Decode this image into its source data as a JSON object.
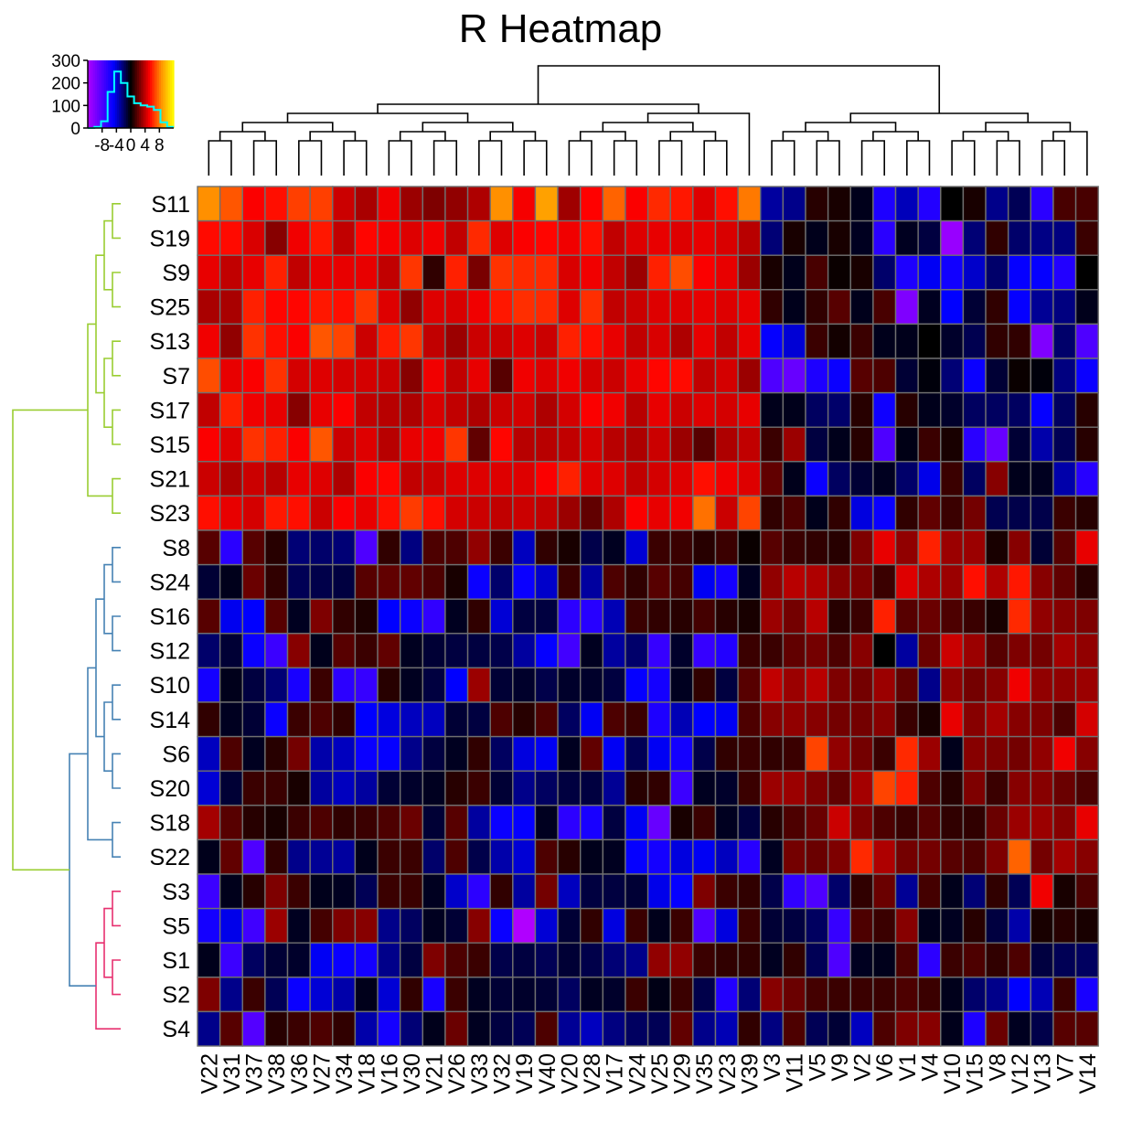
{
  "chart_data": {
    "type": "heatmap",
    "title": "R Heatmap",
    "columns": [
      "V22",
      "V31",
      "V37",
      "V38",
      "V36",
      "V27",
      "V34",
      "V18",
      "V16",
      "V30",
      "V21",
      "V26",
      "V33",
      "V32",
      "V19",
      "V40",
      "V20",
      "V28",
      "V17",
      "V24",
      "V25",
      "V29",
      "V35",
      "V23",
      "V39",
      "V3",
      "V11",
      "V5",
      "V9",
      "V2",
      "V6",
      "V1",
      "V4",
      "V10",
      "V15",
      "V8",
      "V12",
      "V13",
      "V7",
      "V14"
    ],
    "rows": [
      "S11",
      "S19",
      "S9",
      "S25",
      "S13",
      "S7",
      "S17",
      "S15",
      "S21",
      "S23",
      "S8",
      "S24",
      "S16",
      "S12",
      "S10",
      "S14",
      "S6",
      "S20",
      "S18",
      "S22",
      "S3",
      "S5",
      "S1",
      "S2",
      "S4"
    ],
    "row_groups": [
      {
        "color": "#9acd32",
        "rows": [
          "S11",
          "S19",
          "S9",
          "S25",
          "S13",
          "S7",
          "S17",
          "S15",
          "S21",
          "S23"
        ]
      },
      {
        "color": "#4682b4",
        "rows": [
          "S8",
          "S24",
          "S16",
          "S12",
          "S10",
          "S14",
          "S6",
          "S20",
          "S18",
          "S22"
        ]
      },
      {
        "color": "#e7306f",
        "rows": [
          "S3",
          "S5",
          "S1",
          "S2",
          "S4"
        ]
      }
    ],
    "column_groups": [
      {
        "columns": [
          "V22",
          "V31",
          "V37",
          "V38",
          "V36",
          "V27",
          "V34",
          "V18",
          "V16",
          "V30",
          "V21",
          "V26",
          "V33",
          "V32",
          "V19",
          "V40",
          "V20",
          "V28",
          "V17",
          "V24",
          "V25",
          "V29",
          "V35",
          "V23",
          "V39"
        ]
      },
      {
        "columns": [
          "V3",
          "V11",
          "V5",
          "V9",
          "V2",
          "V6",
          "V1",
          "V4",
          "V10",
          "V15",
          "V8",
          "V12",
          "V13",
          "V7",
          "V14"
        ]
      }
    ],
    "values": [
      [
        8.5,
        7.2,
        5.2,
        5.6,
        6.7,
        6.7,
        4.2,
        3.5,
        5.0,
        3.2,
        2.6,
        3.0,
        3.6,
        8.5,
        5.1,
        9.0,
        3.3,
        5.3,
        7.5,
        5.2,
        6.2,
        5.8,
        4.6,
        5.6,
        8.0,
        -3.0,
        -2.6,
        0.8,
        0.5,
        -0.5,
        -6.0,
        -3.5,
        -6.2,
        0.0,
        0.5,
        -2.6,
        -1.6,
        -6.5,
        1.5,
        1.5
      ],
      [
        5.5,
        5.5,
        4.5,
        2.8,
        5.0,
        5.8,
        4.0,
        5.4,
        5.1,
        4.6,
        5.0,
        4.0,
        6.2,
        4.6,
        5.2,
        5.4,
        5.0,
        5.6,
        4.0,
        4.6,
        4.8,
        4.6,
        4.8,
        4.5,
        3.8,
        -2.2,
        0.5,
        -0.5,
        0.5,
        -0.6,
        -6.5,
        -0.6,
        -1.2,
        -11.0,
        -2.2,
        1.0,
        -2.0,
        -2.5,
        -2.4,
        1.2
      ],
      [
        4.8,
        4.0,
        4.8,
        6.0,
        4.0,
        4.8,
        4.8,
        4.8,
        4.0,
        6.5,
        1.0,
        6.0,
        2.5,
        6.4,
        6.2,
        6.2,
        4.5,
        5.0,
        4.0,
        3.2,
        6.0,
        7.0,
        5.2,
        4.8,
        3.2,
        0.5,
        -0.5,
        1.5,
        0.2,
        0.5,
        -2.0,
        -6.0,
        -4.6,
        -5.5,
        -3.8,
        -2.0,
        -5.0,
        -5.0,
        -6.2,
        0.0
      ],
      [
        3.5,
        3.5,
        6.0,
        5.4,
        5.4,
        5.8,
        5.6,
        6.5,
        4.6,
        3.0,
        4.6,
        4.5,
        5.0,
        5.8,
        6.3,
        6.2,
        4.6,
        6.3,
        4.0,
        4.2,
        4.6,
        4.6,
        4.8,
        4.6,
        4.8,
        1.0,
        -0.5,
        1.0,
        1.8,
        -0.5,
        1.5,
        -10.0,
        -0.6,
        -4.8,
        -1.0,
        1.0,
        -5.0,
        -2.8,
        -2.4,
        -0.5
      ],
      [
        5.0,
        3.0,
        6.4,
        5.6,
        5.2,
        7.2,
        6.8,
        4.2,
        5.9,
        6.5,
        4.0,
        3.2,
        4.2,
        4.2,
        4.6,
        4.2,
        6.0,
        5.6,
        4.8,
        4.0,
        4.5,
        3.6,
        4.8,
        4.0,
        4.8,
        -5.0,
        -4.0,
        1.2,
        0.4,
        1.2,
        -0.5,
        -0.5,
        0.0,
        -0.8,
        -1.5,
        1.0,
        1.0,
        -10.0,
        -2.0,
        -8.0
      ],
      [
        7.0,
        4.8,
        5.2,
        6.4,
        4.4,
        4.6,
        4.4,
        4.4,
        4.2,
        2.8,
        5.0,
        4.0,
        4.8,
        1.8,
        5.0,
        4.6,
        5.0,
        4.4,
        4.2,
        4.8,
        5.4,
        5.5,
        4.0,
        4.4,
        3.2,
        -8.0,
        -9.0,
        -6.0,
        -5.2,
        1.8,
        1.6,
        -1.0,
        -0.2,
        -2.2,
        -5.2,
        -1.0,
        0.2,
        -0.2,
        -2.4,
        -5.2
      ],
      [
        4.0,
        6.0,
        5.0,
        4.8,
        2.8,
        4.8,
        5.2,
        4.0,
        3.8,
        3.6,
        4.5,
        4.0,
        3.6,
        4.2,
        4.4,
        3.6,
        4.4,
        5.2,
        5.0,
        3.8,
        4.8,
        4.2,
        4.6,
        4.4,
        4.8,
        -0.5,
        -0.5,
        -1.8,
        -2.0,
        0.8,
        -5.4,
        0.8,
        -0.5,
        -0.8,
        -1.8,
        -1.8,
        -1.8,
        -5.0,
        -1.8,
        0.8
      ],
      [
        5.2,
        4.6,
        6.4,
        6.0,
        5.2,
        7.2,
        4.2,
        4.6,
        3.8,
        4.8,
        5.0,
        6.5,
        2.0,
        5.4,
        3.8,
        3.8,
        4.0,
        4.4,
        3.8,
        3.6,
        4.2,
        3.2,
        1.8,
        3.6,
        4.0,
        1.2,
        3.2,
        -1.2,
        -0.5,
        0.8,
        -8.0,
        -0.4,
        1.2,
        0.5,
        -6.5,
        -9.0,
        -1.0,
        -3.2,
        -1.6,
        0.8
      ],
      [
        4.2,
        3.6,
        4.2,
        3.8,
        4.8,
        4.6,
        3.6,
        5.2,
        5.4,
        4.0,
        4.2,
        4.6,
        4.6,
        4.6,
        4.6,
        5.2,
        6.0,
        4.6,
        4.6,
        4.0,
        4.4,
        4.6,
        5.6,
        5.0,
        4.6,
        2.0,
        -0.5,
        -5.2,
        -1.8,
        -1.0,
        -0.6,
        -2.0,
        -4.4,
        1.2,
        -1.8,
        2.8,
        -0.5,
        -0.6,
        -3.2,
        -6.4
      ],
      [
        5.6,
        4.8,
        4.4,
        5.8,
        5.6,
        4.2,
        5.2,
        4.8,
        5.6,
        6.6,
        5.6,
        4.4,
        4.2,
        4.0,
        4.2,
        4.0,
        3.2,
        2.0,
        3.6,
        5.2,
        4.8,
        5.0,
        7.8,
        4.2,
        6.8,
        1.0,
        1.6,
        -0.5,
        1.0,
        -4.2,
        -5.2,
        1.0,
        2.0,
        1.2,
        2.4,
        -1.5,
        -1.4,
        -1.4,
        1.2,
        0.8
      ],
      [
        1.8,
        -6.5,
        1.8,
        0.8,
        -2.2,
        -2.0,
        -2.2,
        -8.0,
        1.0,
        -2.4,
        1.6,
        1.6,
        3.0,
        1.2,
        -3.6,
        1.0,
        0.5,
        -1.4,
        -0.6,
        -4.0,
        1.2,
        1.2,
        0.8,
        1.2,
        0.2,
        1.8,
        1.2,
        1.0,
        0.8,
        2.6,
        4.8,
        3.0,
        6.0,
        3.2,
        3.2,
        0.5,
        2.8,
        -1.0,
        1.8,
        4.8
      ],
      [
        -1.0,
        -0.5,
        2.2,
        1.0,
        -1.6,
        -1.4,
        -1.2,
        1.8,
        2.0,
        2.0,
        1.6,
        0.5,
        -5.2,
        -2.0,
        -5.2,
        -3.8,
        1.2,
        -3.0,
        1.6,
        1.0,
        1.8,
        1.4,
        -4.6,
        -5.6,
        -0.6,
        3.0,
        3.8,
        3.6,
        2.8,
        2.6,
        1.2,
        4.6,
        3.6,
        3.2,
        5.6,
        3.6,
        5.8,
        2.8,
        2.0,
        0.8
      ],
      [
        1.8,
        -4.5,
        -4.8,
        1.8,
        -0.6,
        2.6,
        1.0,
        0.6,
        -4.8,
        -5.2,
        -6.8,
        -0.6,
        1.0,
        -4.0,
        -1.2,
        -1.2,
        -6.6,
        -6.4,
        -3.4,
        1.2,
        1.0,
        0.8,
        1.4,
        0.8,
        0.5,
        3.2,
        2.4,
        3.8,
        0.8,
        1.2,
        6.0,
        1.8,
        2.2,
        1.6,
        1.2,
        0.5,
        6.2,
        3.0,
        2.8,
        2.6
      ],
      [
        -2.0,
        -1.0,
        -5.2,
        -7.2,
        2.8,
        -0.5,
        1.8,
        1.2,
        2.0,
        -0.6,
        -1.0,
        -1.2,
        -1.2,
        -1.4,
        -3.0,
        -5.0,
        -7.5,
        -0.6,
        -3.0,
        -2.0,
        -7.0,
        -0.8,
        -7.0,
        -6.2,
        1.2,
        1.2,
        2.0,
        2.4,
        1.6,
        2.8,
        0.0,
        -3.0,
        2.2,
        4.2,
        3.2,
        1.8,
        2.6,
        2.4,
        3.4,
        3.0
      ],
      [
        -5.6,
        -0.5,
        -1.2,
        -2.2,
        -5.8,
        1.2,
        -6.6,
        -7.0,
        0.8,
        -0.6,
        -1.2,
        -4.8,
        3.2,
        -1.0,
        -0.8,
        -1.4,
        -0.8,
        -0.8,
        -1.2,
        -5.0,
        -5.6,
        -0.6,
        1.0,
        -1.2,
        1.8,
        4.0,
        3.2,
        3.8,
        2.6,
        2.4,
        3.2,
        2.0,
        -2.6,
        3.0,
        2.4,
        2.8,
        5.0,
        3.0,
        3.0,
        3.2
      ],
      [
        1.0,
        -0.6,
        -1.0,
        -5.2,
        1.2,
        1.6,
        1.0,
        -4.8,
        -4.2,
        -3.6,
        -3.6,
        -1.0,
        -1.2,
        1.6,
        0.8,
        1.6,
        -1.8,
        -4.6,
        1.6,
        1.2,
        -6.0,
        -3.4,
        -4.8,
        -4.6,
        1.6,
        2.8,
        3.0,
        2.8,
        2.4,
        2.4,
        2.8,
        1.2,
        0.5,
        4.8,
        2.8,
        3.4,
        2.8,
        2.6,
        1.6,
        4.4
      ],
      [
        -3.6,
        1.6,
        -0.6,
        0.8,
        2.4,
        -3.2,
        -3.6,
        -5.2,
        -5.0,
        -2.6,
        -1.2,
        -0.6,
        1.0,
        -1.8,
        -4.2,
        -4.6,
        -0.6,
        2.0,
        -4.6,
        -1.6,
        -4.6,
        -5.6,
        -1.4,
        1.0,
        1.2,
        1.0,
        1.2,
        6.8,
        3.0,
        2.4,
        1.2,
        6.2,
        3.2,
        -0.5,
        2.8,
        2.6,
        2.4,
        3.0,
        5.0,
        2.8
      ],
      [
        -4.0,
        -1.0,
        1.2,
        1.2,
        0.5,
        -3.0,
        -3.6,
        -3.0,
        -1.0,
        -0.8,
        -0.6,
        0.8,
        1.2,
        -1.0,
        -2.6,
        -1.8,
        -1.2,
        -1.2,
        -2.8,
        0.8,
        1.0,
        -7.2,
        -0.6,
        -0.8,
        1.2,
        3.2,
        3.2,
        2.6,
        2.0,
        3.4,
        6.8,
        6.0,
        1.6,
        0.8,
        2.6,
        1.2,
        2.8,
        2.8,
        2.2,
        1.6
      ],
      [
        3.4,
        1.8,
        0.8,
        0.5,
        1.2,
        1.6,
        1.0,
        1.2,
        1.6,
        2.2,
        -1.0,
        1.8,
        -3.0,
        -5.2,
        -5.0,
        -0.6,
        -6.6,
        -5.8,
        -1.2,
        -4.6,
        -9.0,
        0.5,
        1.2,
        -0.6,
        -1.2,
        0.8,
        1.6,
        2.2,
        4.2,
        2.6,
        1.6,
        1.2,
        1.8,
        1.0,
        1.0,
        2.2,
        3.2,
        3.2,
        2.8,
        4.8
      ],
      [
        -0.5,
        2.0,
        -8.0,
        1.0,
        -2.6,
        -2.8,
        -3.0,
        -0.5,
        1.2,
        1.2,
        -2.0,
        1.6,
        -1.4,
        -3.2,
        -4.0,
        1.6,
        0.8,
        -0.5,
        -0.6,
        -5.0,
        -5.6,
        -4.2,
        -4.6,
        -3.6,
        -6.4,
        -0.6,
        2.4,
        2.2,
        2.6,
        6.2,
        3.6,
        2.4,
        2.4,
        1.8,
        1.6,
        2.6,
        7.5,
        2.4,
        3.4,
        2.8
      ],
      [
        -7.2,
        -0.5,
        0.8,
        2.6,
        1.2,
        -0.5,
        -0.6,
        -1.6,
        1.2,
        1.2,
        -0.6,
        -3.8,
        -6.6,
        1.0,
        -3.0,
        2.4,
        -3.6,
        -1.2,
        -1.2,
        -1.0,
        -4.4,
        -5.0,
        2.6,
        1.2,
        1.0,
        -1.4,
        -6.8,
        -8.0,
        -2.0,
        1.0,
        2.2,
        -2.8,
        1.4,
        -0.5,
        -2.2,
        1.0,
        -1.6,
        5.0,
        0.5,
        1.6
      ],
      [
        -5.6,
        -4.4,
        -7.4,
        3.2,
        -0.6,
        1.4,
        2.6,
        2.8,
        -2.6,
        -1.8,
        -0.6,
        -1.0,
        2.8,
        -5.2,
        -12.0,
        -4.0,
        -1.0,
        1.0,
        -4.2,
        1.2,
        -0.5,
        1.2,
        -8.0,
        -4.2,
        1.2,
        -1.0,
        -1.2,
        -1.8,
        -7.0,
        1.6,
        1.2,
        2.8,
        -0.5,
        -0.6,
        0.8,
        -1.2,
        -3.2,
        0.5,
        0.8,
        0.5
      ],
      [
        -0.5,
        -7.2,
        -1.8,
        -1.0,
        -0.8,
        -4.6,
        -5.2,
        -5.6,
        -2.6,
        -1.2,
        2.6,
        1.6,
        1.2,
        -1.4,
        -1.2,
        -1.6,
        -1.0,
        -1.4,
        -2.2,
        -2.6,
        3.0,
        3.0,
        1.2,
        1.0,
        1.0,
        -0.6,
        1.0,
        -1.6,
        -8.0,
        -0.6,
        -0.5,
        1.6,
        -6.6,
        1.2,
        1.6,
        1.0,
        1.6,
        -1.2,
        -1.6,
        -1.8
      ],
      [
        2.6,
        -2.6,
        1.2,
        -1.6,
        -5.2,
        -4.0,
        -3.2,
        -0.5,
        -4.0,
        1.0,
        -5.8,
        1.2,
        -0.6,
        -1.0,
        -0.8,
        -1.0,
        -1.8,
        -0.6,
        -0.8,
        1.2,
        -0.4,
        1.2,
        -1.4,
        -6.2,
        -2.2,
        2.8,
        2.2,
        1.4,
        1.2,
        1.2,
        1.2,
        1.6,
        1.2,
        -0.5,
        -2.0,
        -2.6,
        -4.8,
        -3.4,
        1.2,
        -5.8
      ],
      [
        -2.6,
        1.8,
        -8.2,
        0.8,
        1.2,
        1.6,
        1.0,
        -3.2,
        -5.6,
        -2.2,
        -0.5,
        2.2,
        -0.6,
        -1.2,
        -1.6,
        1.6,
        -2.8,
        -3.6,
        -2.4,
        -1.8,
        -1.6,
        2.0,
        -2.6,
        -3.4,
        1.0,
        -2.4,
        1.6,
        -1.6,
        -1.0,
        -3.6,
        1.6,
        2.6,
        2.8,
        -0.5,
        -6.0,
        2.2,
        -0.6,
        -1.4,
        1.8,
        1.8
      ]
    ]
  },
  "color_key": {
    "ticks": [
      "-8",
      "-4",
      "0",
      "4",
      "8"
    ],
    "count_ticks": [
      "0",
      "100",
      "200",
      "300"
    ],
    "count_max": 300,
    "value_range": [
      -12,
      12
    ],
    "histogram_counts": [
      0,
      5,
      30,
      160,
      250,
      200,
      140,
      110,
      100,
      95,
      80,
      25,
      5
    ],
    "histogram_color": "#00ffff"
  }
}
